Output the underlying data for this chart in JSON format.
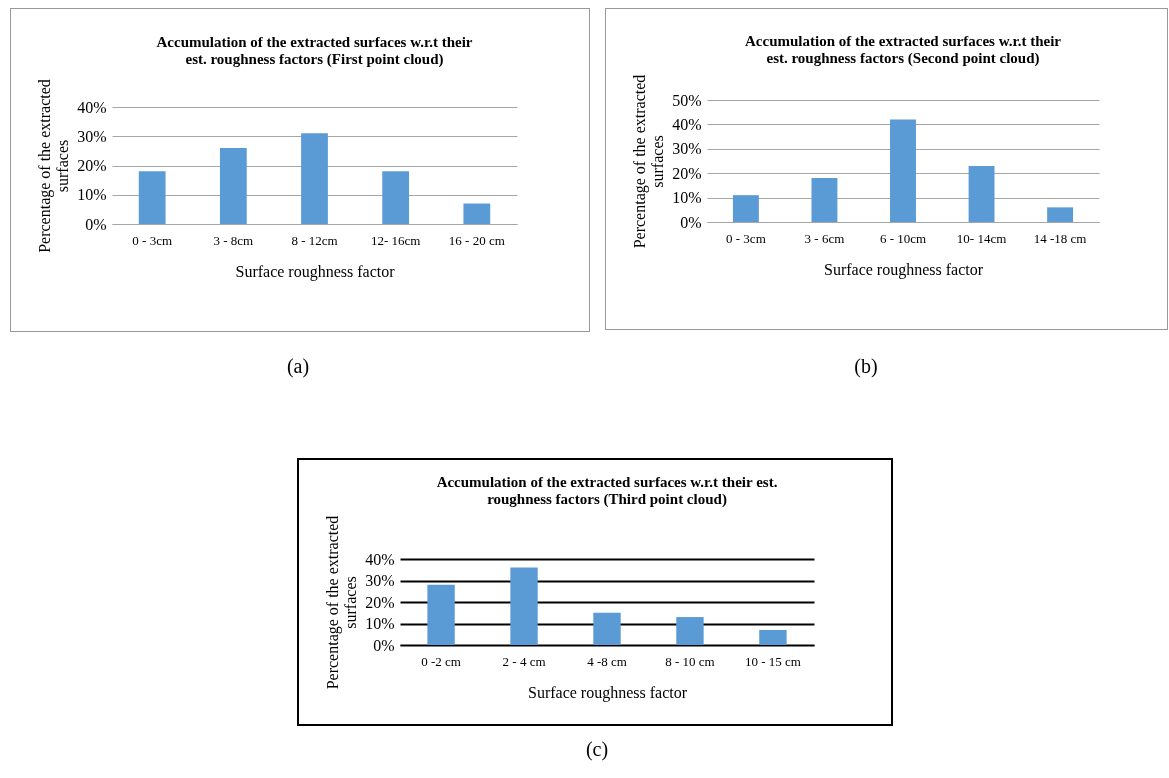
{
  "chart_data": [
    {
      "type": "bar",
      "title": "Accumulation of the extracted surfaces w.r.t their est. roughness factors (First point cloud)",
      "xlabel": "Surface roughness factor",
      "ylabel": "Percentage of the extracted surfaces",
      "categories": [
        "0 - 3cm",
        "3 - 8cm",
        "8 - 12cm",
        "12- 16cm",
        "16 - 20 cm"
      ],
      "values": [
        18,
        26,
        31,
        18,
        7
      ],
      "color": "#5b9bd5",
      "ylim": [
        0,
        40
      ],
      "yticks": [
        {
          "value": 0,
          "label": "0%"
        },
        {
          "value": 10,
          "label": "10%"
        },
        {
          "value": 20,
          "label": "20%"
        },
        {
          "value": 30,
          "label": "30%"
        },
        {
          "value": 40,
          "label": "40%"
        }
      ],
      "grid": "y",
      "annotations": [
        "(a)"
      ]
    },
    {
      "type": "bar",
      "title": "Accumulation of the extracted surfaces w.r.t their est. roughness factors (Second point cloud)",
      "xlabel": "Surface roughness factor",
      "ylabel": "Percentage of the extracted surfaces",
      "categories": [
        "0 - 3cm",
        "3 - 6cm",
        "6 - 10cm",
        "10- 14cm",
        "14 -18 cm"
      ],
      "values": [
        11,
        18,
        42,
        23,
        6
      ],
      "color": "#5b9bd5",
      "ylim": [
        0,
        50
      ],
      "yticks": [
        {
          "value": 0,
          "label": "0%"
        },
        {
          "value": 10,
          "label": "10%"
        },
        {
          "value": 20,
          "label": "20%"
        },
        {
          "value": 30,
          "label": "30%"
        },
        {
          "value": 40,
          "label": "40%"
        },
        {
          "value": 50,
          "label": "50%"
        }
      ],
      "grid": "y",
      "annotations": [
        "(b)"
      ]
    },
    {
      "type": "bar",
      "title": "Accumulation of the extracted surfaces w.r.t their est. roughness factors (Third point cloud)",
      "xlabel": "Surface roughness factor",
      "ylabel": "Percentage of the extracted surfaces",
      "categories": [
        "0 -2 cm",
        "2 - 4 cm",
        "4 -8 cm",
        "8 - 10 cm",
        "10 - 15 cm"
      ],
      "values": [
        28,
        36,
        15,
        13,
        7
      ],
      "color": "#5b9bd5",
      "ylim": [
        0,
        40
      ],
      "yticks": [
        {
          "value": 0,
          "label": "0%"
        },
        {
          "value": 10,
          "label": "10%"
        },
        {
          "value": 20,
          "label": "20%"
        },
        {
          "value": 30,
          "label": "30%"
        },
        {
          "value": 40,
          "label": "40%"
        }
      ],
      "grid": "y",
      "annotations": [
        "(c)"
      ]
    }
  ]
}
